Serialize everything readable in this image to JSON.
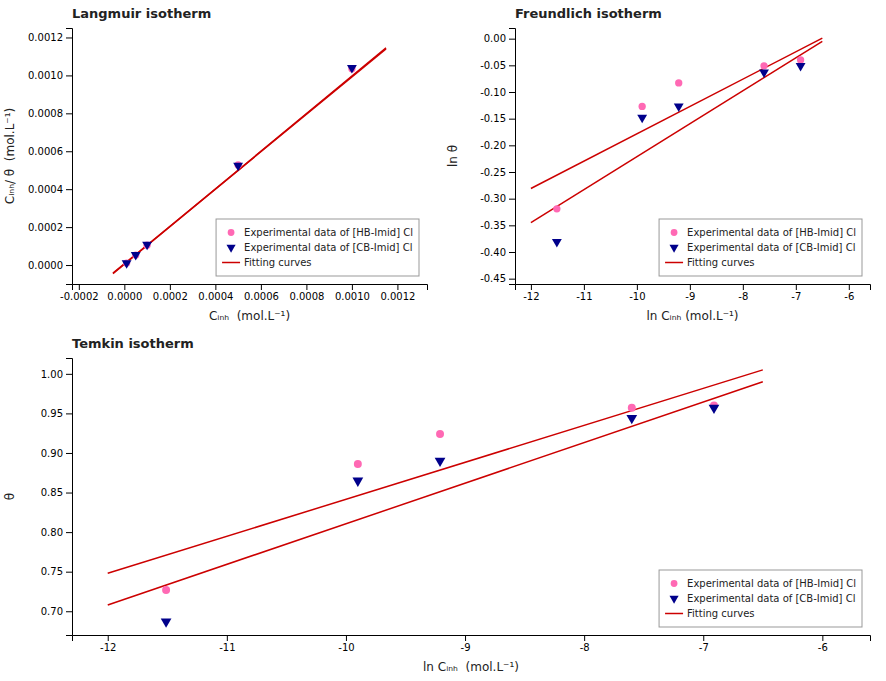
{
  "chart_data": [
    {
      "type": "scatter",
      "title": "Langmuir isotherm",
      "xlabel": "Cᵢₙₕ  (mol.L⁻¹)",
      "ylabel": "Cᵢₙₕ/ θ  (mol.L⁻¹)",
      "xlim": [
        -0.00023,
        0.00133
      ],
      "ylim": [
        -0.0001,
        0.00125
      ],
      "xticks": [
        {
          "value": -0.0002,
          "label": "-0.0002"
        },
        {
          "value": 0.0,
          "label": "0.0000"
        },
        {
          "value": 0.0002,
          "label": "0.0002"
        },
        {
          "value": 0.0004,
          "label": "0.0004"
        },
        {
          "value": 0.0006,
          "label": "0.0006"
        },
        {
          "value": 0.0008,
          "label": "0.0008"
        },
        {
          "value": 0.001,
          "label": "0.0010"
        },
        {
          "value": 0.0012,
          "label": "0.0012"
        }
      ],
      "yticks": [
        {
          "value": 0.0,
          "label": "0.0000"
        },
        {
          "value": 0.0002,
          "label": "0.0002"
        },
        {
          "value": 0.0004,
          "label": "0.0004"
        },
        {
          "value": 0.0006,
          "label": "0.0006"
        },
        {
          "value": 0.0008,
          "label": "0.0008"
        },
        {
          "value": 0.001,
          "label": "0.0010"
        },
        {
          "value": 0.0012,
          "label": "0.0012"
        }
      ],
      "grid": false,
      "legend": "lower right",
      "series": [
        {
          "name": "Experimental data of [HB-Imid] Cl",
          "type": "scatter",
          "marker": "circle",
          "color": "#FF69B4",
          "x": [
            1e-05,
            5e-05,
            0.0001,
            0.0005,
            0.001
          ],
          "values": [
            1.05e-05,
            5.25e-05,
            0.000105,
            0.000528,
            0.001035
          ]
        },
        {
          "name": "Experimental data of [CB-Imid] Cl",
          "type": "scatter",
          "marker": "triangle-down",
          "color": "#00008B",
          "x": [
            1e-05,
            5e-05,
            0.0001,
            0.0005,
            0.001
          ],
          "values": [
            1.08e-05,
            5.4e-05,
            0.000108,
            0.000525,
            0.00104
          ]
        },
        {
          "name": "Fitting curves",
          "type": "line",
          "color": "#CC0000",
          "x": [
            -5e-05,
            0.00115
          ],
          "values": [
            -4.55e-05,
            0.001145
          ]
        },
        {
          "type": "line",
          "color": "#CC0000",
          "x": [
            -5e-05,
            0.00115
          ],
          "values": [
            -4.3e-05,
            0.00114
          ]
        }
      ]
    },
    {
      "type": "scatter",
      "title": "Freundlich isotherm",
      "xlabel": "ln Cᵢₙₕ (mol.L⁻¹)",
      "ylabel": "ln θ",
      "xlim": [
        -12.3,
        -5.6
      ],
      "ylim": [
        -0.46,
        0.02
      ],
      "xticks": [
        -12,
        -11,
        -10,
        -9,
        -8,
        -7,
        -6
      ],
      "yticks": [
        {
          "value": 0.0,
          "label": "0.00"
        },
        -0.05,
        {
          "value": -0.1,
          "label": "-0.10"
        },
        -0.15,
        {
          "value": -0.2,
          "label": "-0.20"
        },
        -0.25,
        {
          "value": -0.3,
          "label": "-0.30"
        },
        -0.35,
        {
          "value": -0.4,
          "label": "-0.40"
        },
        -0.45
      ],
      "grid": false,
      "legend": "lower right",
      "series": [
        {
          "name": "Experimental data of [HB-Imid] Cl",
          "type": "scatter",
          "marker": "circle",
          "color": "#FF69B4",
          "x": [
            -11.51,
            -9.9,
            -9.21,
            -7.6,
            -6.91
          ],
          "values": [
            -0.319,
            -0.127,
            -0.083,
            -0.051,
            -0.04
          ]
        },
        {
          "name": "Experimental data of [CB-Imid] Cl",
          "type": "scatter",
          "marker": "triangle-down",
          "color": "#00008B",
          "x": [
            -11.51,
            -9.9,
            -9.21,
            -7.6,
            -6.91
          ],
          "values": [
            -0.381,
            -0.148,
            -0.127,
            -0.063,
            -0.051
          ]
        },
        {
          "name": "Fitting curves",
          "type": "line",
          "color": "#CC0000",
          "x": [
            -12.0,
            -6.5
          ],
          "values": [
            -0.281,
            0.001
          ]
        },
        {
          "type": "line",
          "color": "#CC0000",
          "x": [
            -12.0,
            -6.5
          ],
          "values": [
            -0.345,
            -0.005
          ]
        }
      ]
    },
    {
      "type": "scatter",
      "title": "Temkin isotherm",
      "xlabel": "ln Cᵢₙₕ  (mol.L⁻¹)",
      "ylabel": "θ",
      "xlim": [
        -12.3,
        -5.6
      ],
      "ylim": [
        0.67,
        1.02
      ],
      "xticks": [
        -12,
        -11,
        -10,
        -9,
        -8,
        -7,
        -6
      ],
      "yticks": [
        {
          "value": 0.7,
          "label": "0.70"
        },
        0.75,
        {
          "value": 0.8,
          "label": "0.80"
        },
        0.85,
        {
          "value": 0.9,
          "label": "0.90"
        },
        0.95,
        {
          "value": 1.0,
          "label": "1.00"
        }
      ],
      "grid": false,
      "legend": "lower right",
      "series": [
        {
          "name": "Experimental data of [HB-Imid] Cl",
          "type": "scatter",
          "marker": "circle",
          "color": "#FF69B4",
          "x": [
            -11.51,
            -9.9,
            -9.21,
            -7.6,
            -6.91
          ],
          "values": [
            0.727,
            0.886,
            0.924,
            0.957,
            0.96
          ]
        },
        {
          "name": "Experimental data of [CB-Imid] Cl",
          "type": "scatter",
          "marker": "triangle-down",
          "color": "#00008B",
          "x": [
            -11.51,
            -9.9,
            -9.21,
            -7.6,
            -6.91
          ],
          "values": [
            0.687,
            0.865,
            0.89,
            0.944,
            0.957
          ]
        },
        {
          "name": "Fitting curves",
          "type": "line",
          "color": "#CC0000",
          "x": [
            -12.0,
            -6.5
          ],
          "values": [
            0.748,
            1.005
          ]
        },
        {
          "type": "line",
          "color": "#CC0000",
          "x": [
            -12.0,
            -6.5
          ],
          "values": [
            0.708,
            0.99
          ]
        }
      ]
    }
  ]
}
